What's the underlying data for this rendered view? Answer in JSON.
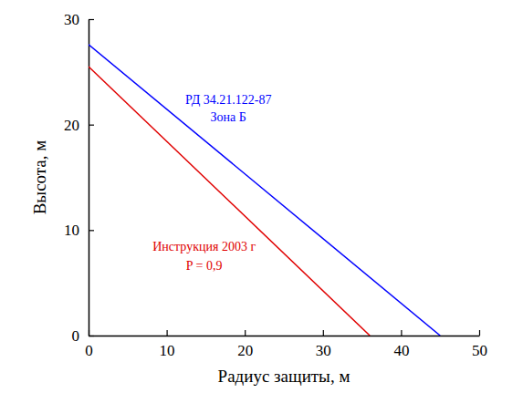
{
  "chart_data": {
    "type": "line",
    "x_label": "Радиус защиты,  м",
    "y_label": "Высота,  м",
    "xlim": [
      0,
      50
    ],
    "xticks": [
      0,
      10,
      20,
      30,
      40,
      50
    ],
    "ylim": [
      0,
      30
    ],
    "yticks": [
      0,
      10,
      20,
      30
    ],
    "grid": false,
    "series": [
      {
        "name": "РД 34.21.122-87 Зона Б",
        "color": "#0000ff",
        "x": [
          0,
          45
        ],
        "values": [
          27.6,
          0
        ]
      },
      {
        "name": "Инструкция 2003 г P = 0,9",
        "color": "#e00000",
        "x": [
          0,
          36
        ],
        "values": [
          25.5,
          0
        ]
      }
    ],
    "annotations": [
      {
        "text": "РД 34.21.122-87",
        "color": "#0000ff"
      },
      {
        "text": "Зона Б",
        "color": "#0000ff"
      },
      {
        "text": "Инструкция 2003 г",
        "color": "#e00000"
      },
      {
        "text": "P = 0,9",
        "color": "#e00000"
      }
    ]
  }
}
